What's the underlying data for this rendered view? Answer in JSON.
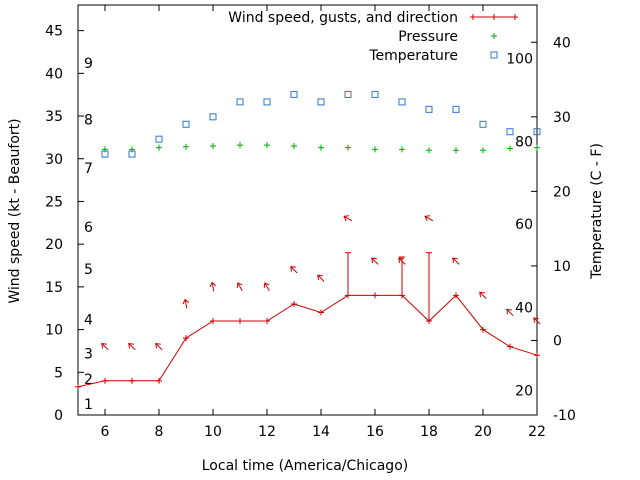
{
  "chart_data": {
    "type": "line",
    "title": "",
    "xlabel": "Local time (America/Chicago)",
    "ylabel": "Wind speed (kt - Beaufort)",
    "y2label": "Temperature (C - F)",
    "xlim": [
      5,
      22
    ],
    "ylim": [
      0,
      48
    ],
    "y2lim": [
      -10,
      45
    ],
    "x_ticks": [
      6,
      8,
      10,
      12,
      14,
      16,
      18,
      20,
      22
    ],
    "y_ticks": [
      0,
      5,
      10,
      15,
      20,
      25,
      30,
      35,
      40,
      45
    ],
    "y2_ticks": [
      -10,
      0,
      10,
      20,
      30,
      40
    ],
    "beaufort_scale": [
      {
        "label": "1",
        "kt": 1.3
      },
      {
        "label": "2",
        "kt": 4.2
      },
      {
        "label": "3",
        "kt": 7.2
      },
      {
        "label": "4",
        "kt": 11.2
      },
      {
        "label": "5",
        "kt": 17.1
      },
      {
        "label": "6",
        "kt": 22.0
      },
      {
        "label": "7",
        "kt": 28.9
      },
      {
        "label": "8",
        "kt": 34.6
      },
      {
        "label": "9",
        "kt": 41.2
      }
    ],
    "fahrenheit_scale": [
      {
        "label": "20",
        "temp_c": -6.7
      },
      {
        "label": "40",
        "temp_c": 4.4
      },
      {
        "label": "60",
        "temp_c": 15.6
      },
      {
        "label": "80",
        "temp_c": 26.7
      },
      {
        "label": "100",
        "temp_c": 37.8
      }
    ],
    "legend": {
      "position": "top-right",
      "entries": [
        {
          "label": "Wind speed, gusts, and direction",
          "series": "wind",
          "style": "line-points"
        },
        {
          "label": "Pressure",
          "series": "pressure",
          "style": "plus"
        },
        {
          "label": "Temperature",
          "series": "temperature",
          "style": "square"
        }
      ]
    },
    "series": [
      {
        "name": "wind",
        "color": "#cc0000",
        "x": [
          5,
          6,
          7,
          8,
          9,
          10,
          11,
          12,
          13,
          14,
          15,
          16,
          17,
          18,
          19,
          20,
          21,
          22
        ],
        "values": [
          3.3,
          4,
          4,
          4,
          9,
          11,
          11,
          11,
          13,
          12,
          14,
          14,
          14,
          11,
          14,
          10,
          8,
          7
        ]
      },
      {
        "name": "gusts",
        "color": "#cc0000",
        "bars": [
          {
            "x": 15,
            "from": 14,
            "to": 19
          },
          {
            "x": 17,
            "from": 14,
            "to": 18.5
          },
          {
            "x": 18,
            "from": 11,
            "to": 19
          }
        ]
      },
      {
        "name": "direction",
        "color": "#cc0000",
        "arrows": [
          {
            "x": 6,
            "y": 8,
            "deg": 135
          },
          {
            "x": 7,
            "y": 8,
            "deg": 135
          },
          {
            "x": 8,
            "y": 8,
            "deg": 135
          },
          {
            "x": 9,
            "y": 13,
            "deg": 100
          },
          {
            "x": 10,
            "y": 15,
            "deg": 100
          },
          {
            "x": 11,
            "y": 15,
            "deg": 120
          },
          {
            "x": 12,
            "y": 15,
            "deg": 120
          },
          {
            "x": 13,
            "y": 17,
            "deg": 135
          },
          {
            "x": 14,
            "y": 16,
            "deg": 135
          },
          {
            "x": 15,
            "y": 23,
            "deg": 150
          },
          {
            "x": 16,
            "y": 18,
            "deg": 135
          },
          {
            "x": 17,
            "y": 18,
            "deg": 135
          },
          {
            "x": 18,
            "y": 23,
            "deg": 150
          },
          {
            "x": 19,
            "y": 18,
            "deg": 135
          },
          {
            "x": 20,
            "y": 14,
            "deg": 135
          },
          {
            "x": 21,
            "y": 12,
            "deg": 135
          },
          {
            "x": 22,
            "y": 11,
            "deg": 135
          }
        ]
      },
      {
        "name": "pressure",
        "color": "#00aa00",
        "x": [
          6,
          7,
          8,
          9,
          10,
          11,
          12,
          13,
          14,
          15,
          16,
          17,
          18,
          19,
          20,
          21,
          22
        ],
        "values": [
          31.1,
          31.1,
          31.3,
          31.4,
          31.5,
          31.6,
          31.6,
          31.5,
          31.3,
          31.3,
          31.1,
          31.1,
          31.0,
          31.0,
          31.0,
          31.2,
          31.3
        ]
      },
      {
        "name": "temperature",
        "axis": "y2",
        "unit": "C",
        "color": "#2c78c8",
        "x": [
          6,
          7,
          8,
          9,
          10,
          11,
          12,
          13,
          14,
          15,
          16,
          17,
          18,
          19,
          20,
          21,
          22
        ],
        "values": [
          25,
          25,
          27,
          29,
          30,
          32,
          32,
          33,
          32,
          33,
          33,
          32,
          31,
          31,
          29,
          28,
          28
        ]
      }
    ]
  }
}
